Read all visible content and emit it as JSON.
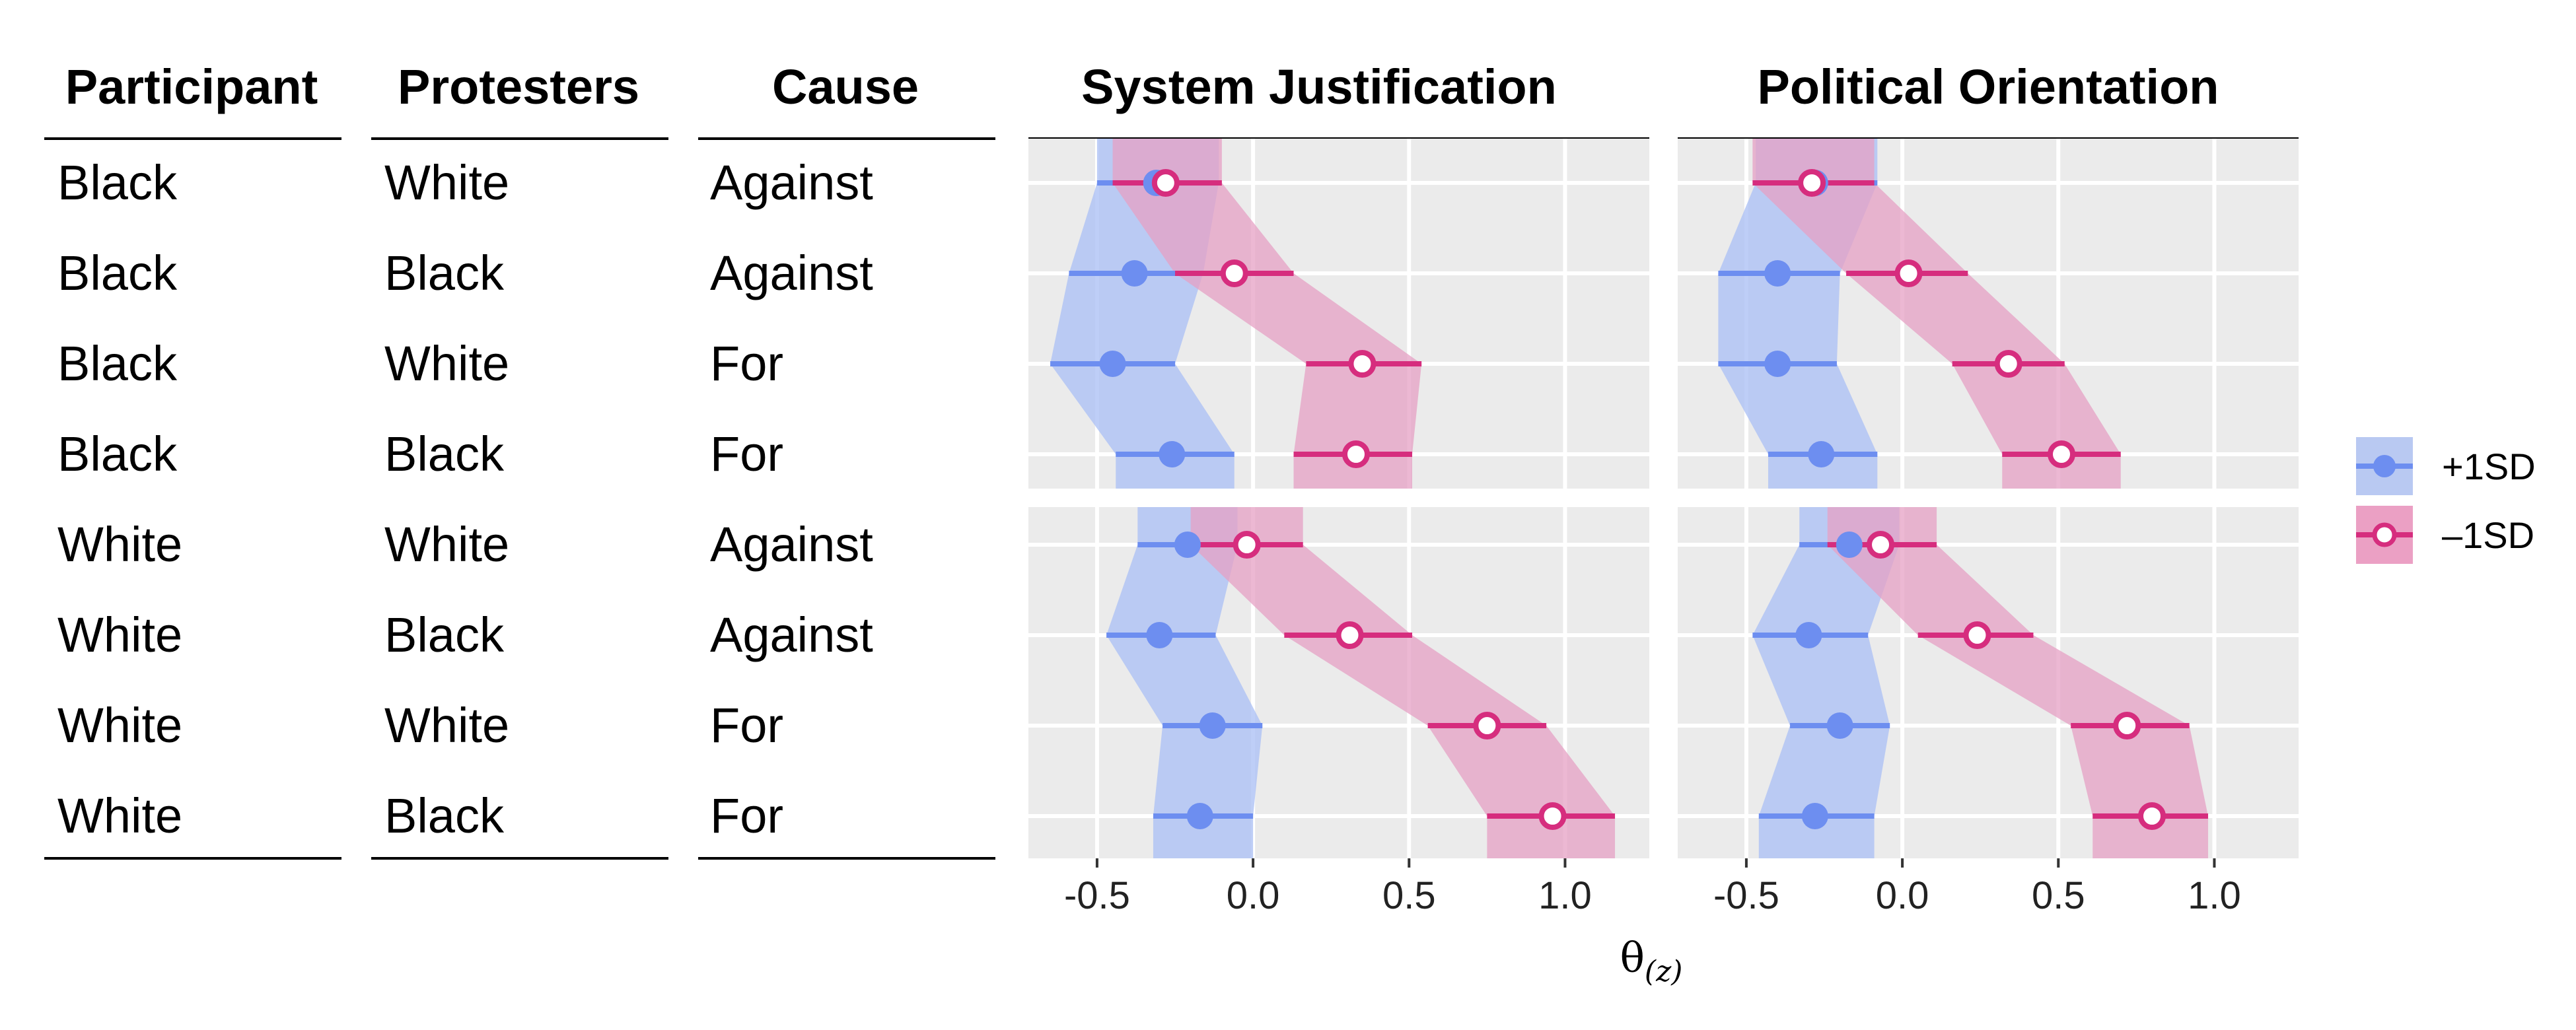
{
  "table": {
    "headers": [
      "Participant",
      "Protesters",
      "Cause"
    ],
    "rows": [
      [
        "Black",
        "White",
        "Against"
      ],
      [
        "Black",
        "Black",
        "Against"
      ],
      [
        "Black",
        "White",
        "For"
      ],
      [
        "Black",
        "Black",
        "For"
      ],
      [
        "White",
        "White",
        "Against"
      ],
      [
        "White",
        "Black",
        "Against"
      ],
      [
        "White",
        "White",
        "For"
      ],
      [
        "White",
        "Black",
        "For"
      ]
    ]
  },
  "chart_data": [
    {
      "type": "scatter",
      "title": "System Justification",
      "xlabel": "θ",
      "xlabel_subscript": "(z)",
      "xlim": [
        -0.72,
        1.27
      ],
      "xticks": [
        -0.5,
        0.0,
        0.5,
        1.0
      ],
      "xtick_labels": [
        "-0.5",
        "0.0",
        "0.5",
        "1.0"
      ],
      "grid": true,
      "categories": [
        "Black-White-Against",
        "Black-Black-Against",
        "Black-White-For",
        "Black-Black-For",
        "White-White-Against",
        "White-Black-Against",
        "White-White-For",
        "White-Black-For"
      ],
      "series": [
        {
          "name": "+1SD",
          "values": [
            -0.31,
            -0.38,
            -0.45,
            -0.26,
            -0.21,
            -0.3,
            -0.13,
            -0.17
          ],
          "lower": [
            -0.5,
            -0.59,
            -0.65,
            -0.44,
            -0.37,
            -0.47,
            -0.29,
            -0.32
          ],
          "upper": [
            -0.11,
            -0.16,
            -0.25,
            -0.06,
            -0.05,
            -0.12,
            0.03,
            0.0
          ]
        },
        {
          "name": "–1SD",
          "values": [
            -0.28,
            -0.06,
            0.35,
            0.33,
            -0.02,
            0.31,
            0.75,
            0.96
          ],
          "lower": [
            -0.45,
            -0.25,
            0.17,
            0.13,
            -0.2,
            0.1,
            0.56,
            0.75
          ],
          "upper": [
            -0.1,
            0.13,
            0.54,
            0.51,
            0.16,
            0.51,
            0.94,
            1.16
          ]
        }
      ]
    },
    {
      "type": "scatter",
      "title": "Political Orientation",
      "xlabel": "θ",
      "xlabel_subscript": "(z)",
      "xlim": [
        -0.72,
        1.27
      ],
      "xticks": [
        -0.5,
        0.0,
        0.5,
        1.0
      ],
      "xtick_labels": [
        "-0.5",
        "0.0",
        "0.5",
        "1.0"
      ],
      "grid": true,
      "categories": [
        "Black-White-Against",
        "Black-Black-Against",
        "Black-White-For",
        "Black-Black-For",
        "White-White-Against",
        "White-Black-Against",
        "White-White-For",
        "White-Black-For"
      ],
      "series": [
        {
          "name": "+1SD",
          "values": [
            -0.28,
            -0.4,
            -0.4,
            -0.26,
            -0.17,
            -0.3,
            -0.2,
            -0.28
          ],
          "lower": [
            -0.47,
            -0.59,
            -0.59,
            -0.43,
            -0.33,
            -0.48,
            -0.36,
            -0.46
          ],
          "upper": [
            -0.08,
            -0.2,
            -0.21,
            -0.08,
            -0.01,
            -0.11,
            -0.04,
            -0.09
          ]
        },
        {
          "name": "–1SD",
          "values": [
            -0.29,
            0.02,
            0.34,
            0.51,
            -0.07,
            0.24,
            0.72,
            0.8
          ],
          "lower": [
            -0.48,
            -0.18,
            0.16,
            0.32,
            -0.24,
            0.05,
            0.54,
            0.61
          ],
          "upper": [
            -0.09,
            0.21,
            0.52,
            0.7,
            0.11,
            0.42,
            0.92,
            0.98
          ]
        }
      ]
    }
  ],
  "legend": {
    "position": "right",
    "items": [
      {
        "label": "+1SD",
        "color": "#6D8EF0",
        "fill": "#B9C9F2",
        "marker": "filled-circle"
      },
      {
        "label": "–1SD",
        "color": "#D62D7E",
        "fill": "#EBA0C4",
        "marker": "open-circle"
      }
    ]
  },
  "colors": {
    "panel_bg": "#EBEBEB",
    "grid": "#FFFFFF",
    "blue_line": "#6D8EF0",
    "blue_band": "#AEC2F5",
    "pink_line": "#D62D7E",
    "pink_band": "#E5A0C4"
  }
}
